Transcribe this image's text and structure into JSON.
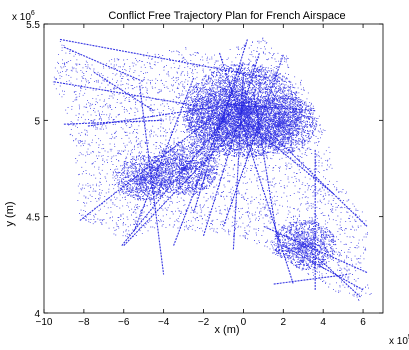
{
  "chart_data": {
    "type": "scatter",
    "title": "Conflict Free Trajectory Plan for French Airspace",
    "xlabel": "x (m)",
    "ylabel": "y (m)",
    "x_multiplier_label": "x 10",
    "x_multiplier_exponent": "5",
    "y_multiplier_label": "x 10",
    "y_multiplier_exponent": "6",
    "xlim": [
      -10,
      7
    ],
    "ylim": [
      4,
      5.5
    ],
    "xticks": [
      -10,
      -8,
      -6,
      -4,
      -2,
      0,
      2,
      4,
      6
    ],
    "xtick_labels": [
      "−10",
      "−8",
      "−6",
      "−4",
      "−2",
      "0",
      "2",
      "4",
      "6"
    ],
    "yticks": [
      4,
      4.5,
      5,
      5.5
    ],
    "ytick_labels": [
      "4",
      "4.5",
      "5",
      "5.5"
    ],
    "grid": false,
    "legend": "none",
    "series_color": "#1f1fe0",
    "marker": "dot",
    "region_outline": [
      [
        -9.2,
        5.42
      ],
      [
        -7.5,
        5.3
      ],
      [
        -5.0,
        5.35
      ],
      [
        -3.0,
        5.38
      ],
      [
        -1.5,
        5.34
      ],
      [
        1.0,
        5.43
      ],
      [
        2.2,
        5.33
      ],
      [
        3.6,
        5.08
      ],
      [
        4.2,
        4.92
      ],
      [
        4.5,
        4.7
      ],
      [
        5.6,
        4.6
      ],
      [
        6.3,
        4.45
      ],
      [
        6.0,
        4.2
      ],
      [
        6.4,
        4.1
      ],
      [
        5.9,
        4.05
      ],
      [
        4.6,
        4.1
      ],
      [
        3.5,
        4.18
      ],
      [
        2.0,
        4.28
      ],
      [
        0.2,
        4.38
      ],
      [
        -1.8,
        4.42
      ],
      [
        -4.0,
        4.44
      ],
      [
        -6.0,
        4.38
      ],
      [
        -7.5,
        4.46
      ],
      [
        -8.3,
        4.48
      ],
      [
        -8.4,
        4.75
      ],
      [
        -9.1,
        5.1
      ],
      [
        -9.6,
        5.2
      ]
    ],
    "dense_hubs": [
      {
        "x": 0.0,
        "y": 5.05,
        "weight": 3.0
      },
      {
        "x": -1.0,
        "y": 5.0,
        "weight": 1.4
      },
      {
        "x": 1.8,
        "y": 4.98,
        "weight": 1.2
      },
      {
        "x": -3.0,
        "y": 4.75,
        "weight": 1.0
      },
      {
        "x": 3.0,
        "y": 4.35,
        "weight": 0.9
      },
      {
        "x": -5.0,
        "y": 4.7,
        "weight": 0.7
      }
    ],
    "trajectories": [
      {
        "from": [
          -9.2,
          5.42
        ],
        "to": [
          1.2,
          5.22
        ]
      },
      {
        "from": [
          -9.5,
          5.2
        ],
        "to": [
          -2.0,
          5.07
        ]
      },
      {
        "from": [
          -7.8,
          4.97
        ],
        "to": [
          0.5,
          5.1
        ]
      },
      {
        "from": [
          -8.2,
          4.48
        ],
        "to": [
          -1.5,
          5.02
        ]
      },
      {
        "from": [
          -6.1,
          4.35
        ],
        "to": [
          0.2,
          5.15
        ]
      },
      {
        "from": [
          -6.0,
          4.35
        ],
        "to": [
          0.5,
          5.05
        ]
      },
      {
        "from": [
          -3.5,
          4.35
        ],
        "to": [
          0.0,
          5.3
        ]
      },
      {
        "from": [
          -2.0,
          4.4
        ],
        "to": [
          0.8,
          5.35
        ]
      },
      {
        "from": [
          -0.5,
          4.33
        ],
        "to": [
          0.0,
          5.25
        ]
      },
      {
        "from": [
          1.8,
          4.32
        ],
        "to": [
          0.5,
          5.15
        ]
      },
      {
        "from": [
          6.2,
          4.21
        ],
        "to": [
          1.0,
          4.45
        ]
      },
      {
        "from": [
          6.0,
          4.12
        ],
        "to": [
          2.0,
          4.35
        ]
      },
      {
        "from": [
          5.2,
          4.2
        ],
        "to": [
          1.5,
          4.15
        ]
      },
      {
        "from": [
          3.8,
          4.28
        ],
        "to": [
          5.9,
          4.08
        ]
      },
      {
        "from": [
          3.6,
          5.05
        ],
        "to": [
          -0.5,
          5.08
        ]
      },
      {
        "from": [
          4.5,
          4.62
        ],
        "to": [
          0.0,
          5.0
        ]
      },
      {
        "from": [
          6.2,
          4.45
        ],
        "to": [
          1.2,
          4.95
        ]
      },
      {
        "from": [
          -9.0,
          4.98
        ],
        "to": [
          -4.0,
          5.0
        ]
      },
      {
        "from": [
          -5.2,
          5.18
        ],
        "to": [
          -4.0,
          4.2
        ]
      },
      {
        "from": [
          -1.2,
          5.35
        ],
        "to": [
          2.5,
          4.15
        ]
      },
      {
        "from": [
          2.0,
          5.34
        ],
        "to": [
          -1.0,
          4.45
        ]
      },
      {
        "from": [
          0.2,
          5.42
        ],
        "to": [
          -2.5,
          4.52
        ]
      },
      {
        "from": [
          -2.5,
          5.22
        ],
        "to": [
          -5.5,
          4.42
        ]
      },
      {
        "from": [
          3.6,
          4.12
        ],
        "to": [
          3.6,
          4.85
        ]
      },
      {
        "from": [
          -7.5,
          5.25
        ],
        "to": [
          -4.5,
          5.05
        ]
      },
      {
        "from": [
          -9.0,
          5.38
        ],
        "to": [
          -5.0,
          5.2
        ]
      }
    ]
  }
}
